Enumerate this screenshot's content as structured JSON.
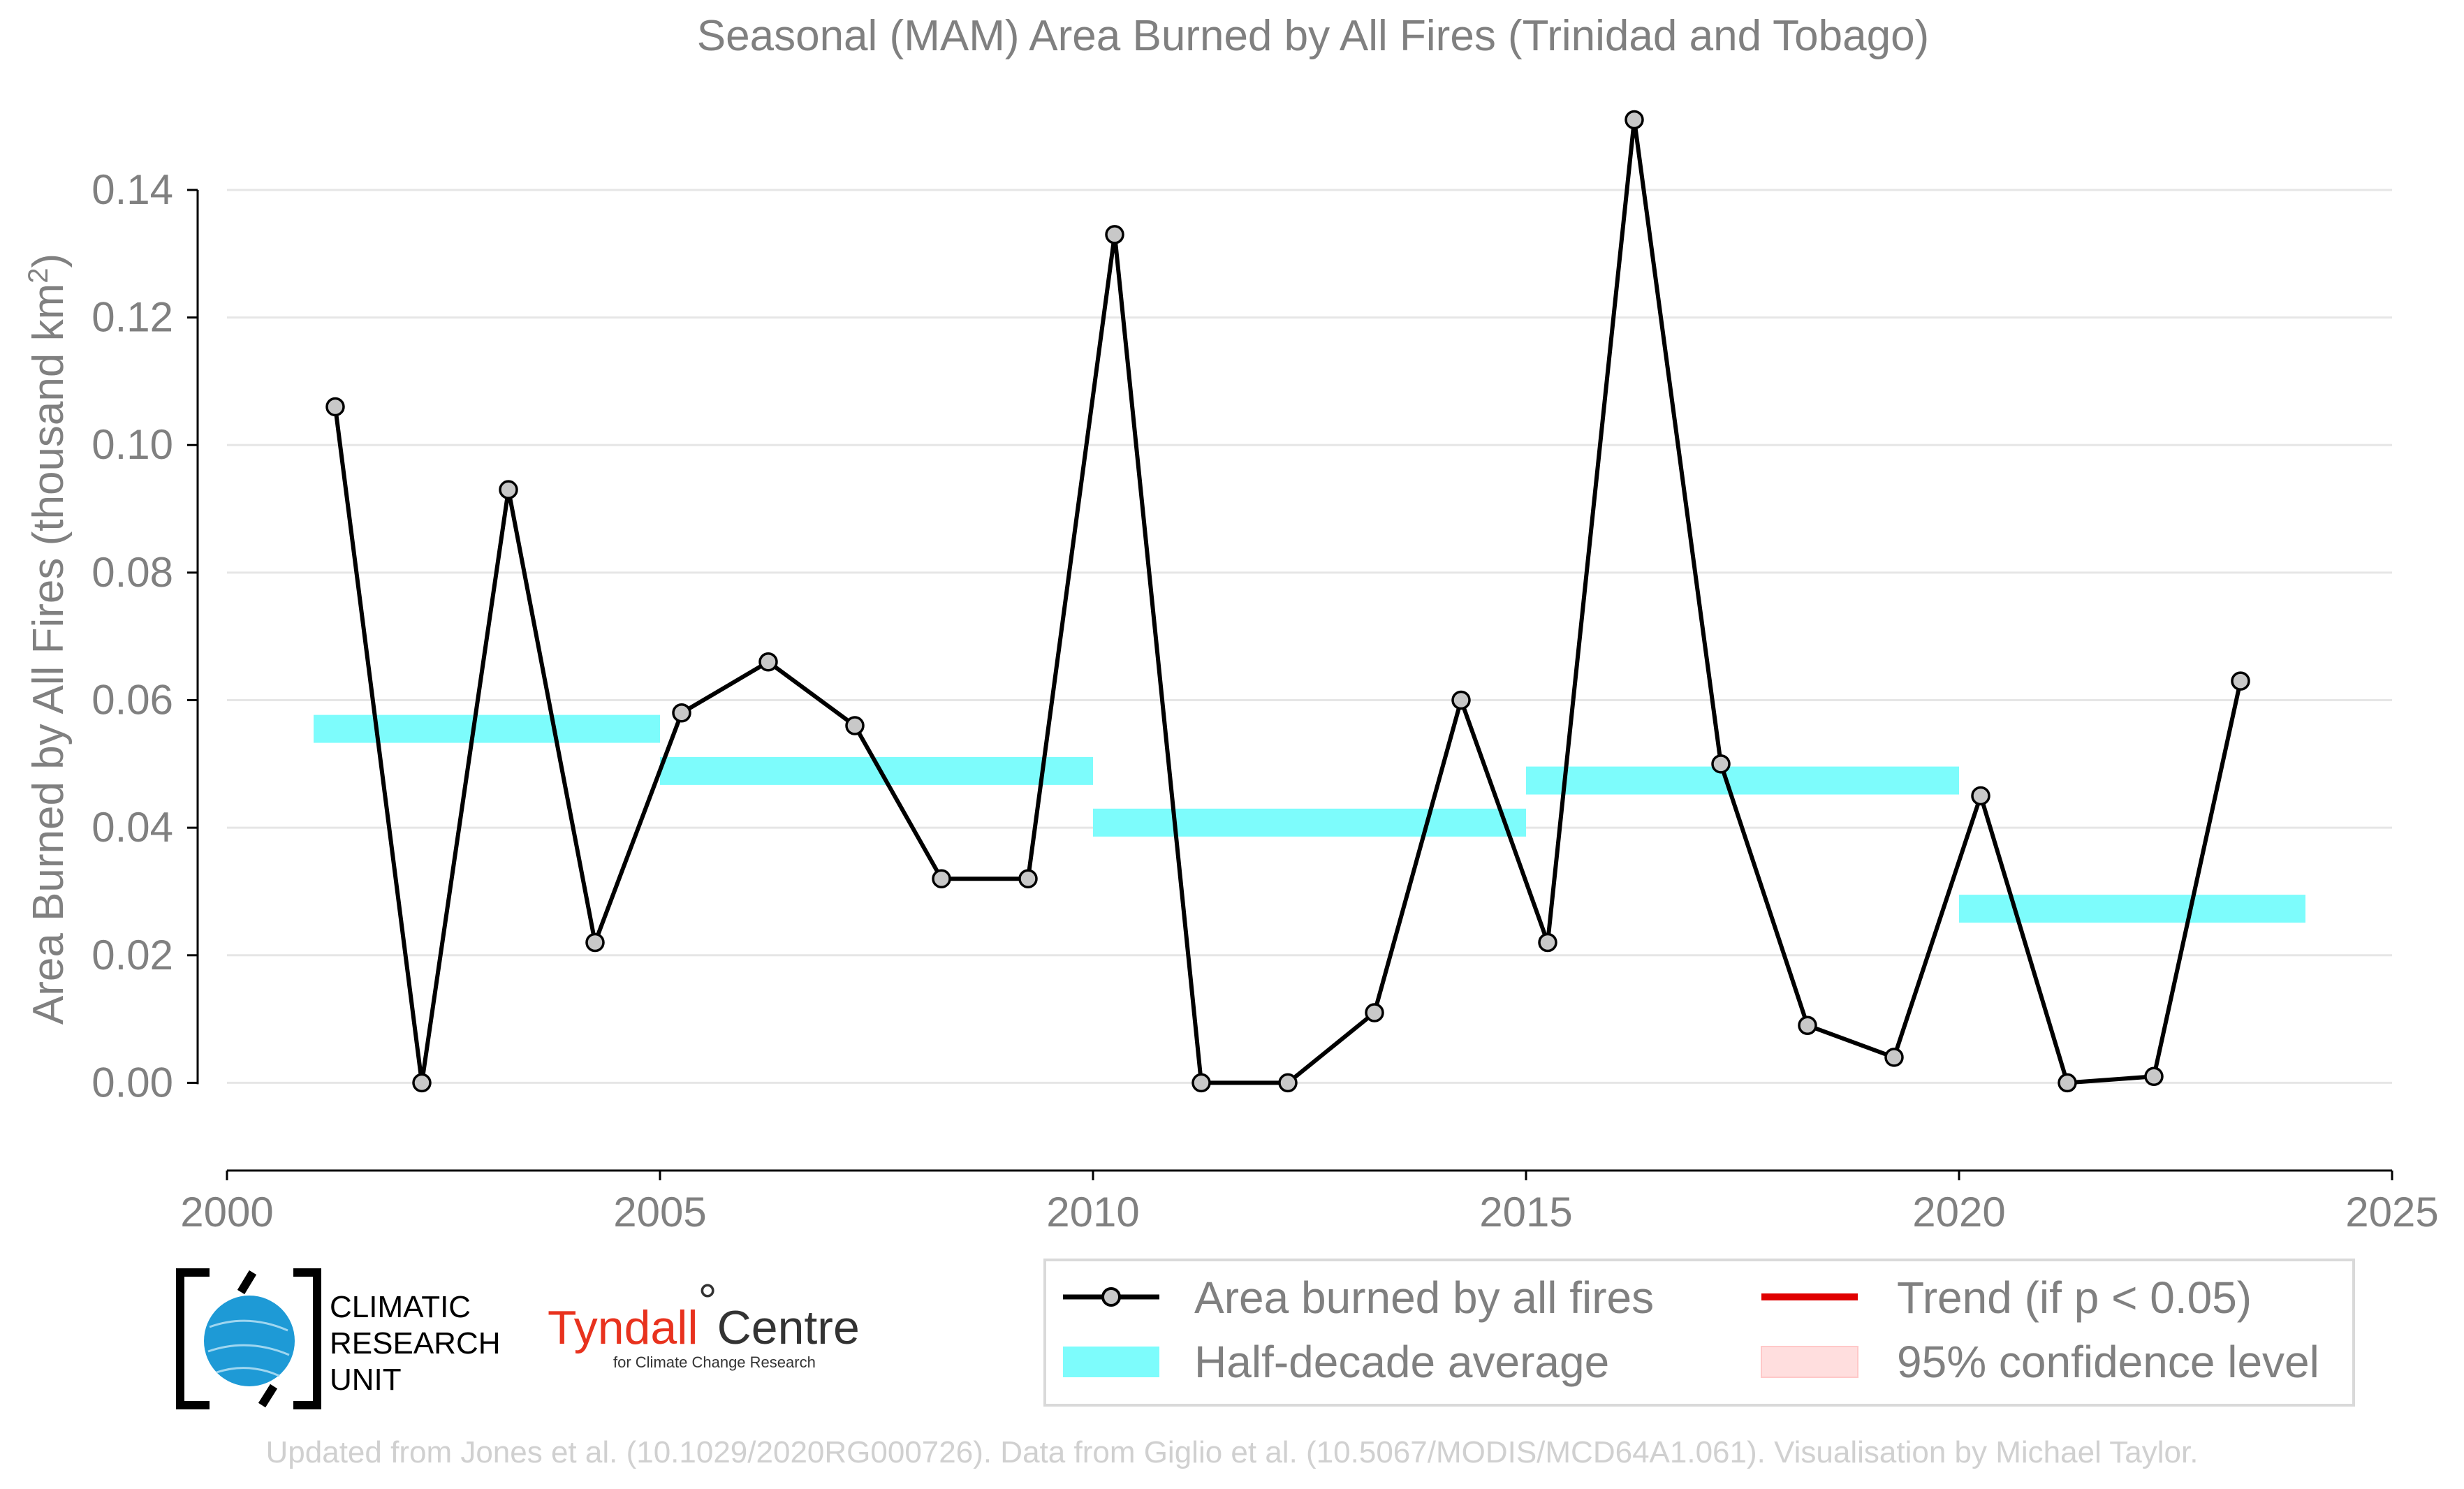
{
  "chart_data": {
    "type": "line",
    "title": "Seasonal (MAM) Area Burned by All Fires (Trinidad and Tobago)",
    "ylabel": "Area Burned by All Fires (thousand km",
    "ylabel_sup": "2",
    "ylabel_close": ")",
    "xlim": [
      2000,
      2025
    ],
    "ylim": [
      -0.012,
      0.155
    ],
    "xticks": [
      2000,
      2005,
      2010,
      2015,
      2020,
      2025
    ],
    "xtick_labels": [
      "2000",
      "2005",
      "2010",
      "2015",
      "2020",
      "2025"
    ],
    "yticks": [
      0.0,
      0.02,
      0.04,
      0.06,
      0.08,
      0.1,
      0.12,
      0.14
    ],
    "ytick_labels": [
      "0.00",
      "0.02",
      "0.04",
      "0.06",
      "0.08",
      "0.10",
      "0.12",
      "0.14"
    ],
    "grid": true,
    "series": [
      {
        "name": "Area burned by all fires",
        "color": "#000000",
        "marker_fill": "#c8c8c8",
        "x": [
          2001.25,
          2002.25,
          2003.25,
          2004.25,
          2005.25,
          2006.25,
          2007.25,
          2008.25,
          2009.25,
          2010.25,
          2011.25,
          2012.25,
          2013.25,
          2014.25,
          2015.25,
          2016.25,
          2017.25,
          2018.25,
          2019.25,
          2020.25,
          2021.25,
          2022.25,
          2023.25
        ],
        "y": [
          0.106,
          0.0,
          0.093,
          0.022,
          0.058,
          0.066,
          0.056,
          0.032,
          0.032,
          0.133,
          0.0,
          0.0,
          0.011,
          0.06,
          0.022,
          0.151,
          0.05,
          0.009,
          0.004,
          0.045,
          0.0,
          0.001,
          0.063
        ]
      }
    ],
    "half_decade_average": {
      "name": "Half-decade average",
      "color": "#7dfcfc",
      "segments": [
        {
          "x0": 2001,
          "x1": 2005,
          "y": 0.0555
        },
        {
          "x0": 2005,
          "x1": 2010,
          "y": 0.0489
        },
        {
          "x0": 2010,
          "x1": 2015,
          "y": 0.0408
        },
        {
          "x0": 2015,
          "x1": 2020,
          "y": 0.0474
        },
        {
          "x0": 2020,
          "x1": 2024,
          "y": 0.0273
        }
      ]
    },
    "legend": {
      "placement": "bottom-right",
      "entries": [
        {
          "label": "Area burned by all fires",
          "color": "#000000"
        },
        {
          "label": "Trend (if p < 0.05)",
          "color": "#e00000"
        },
        {
          "label": "Half-decade average",
          "color": "#7dfcfc"
        },
        {
          "label": "95% confidence level",
          "color": "#ffdede"
        }
      ]
    }
  },
  "logos": {
    "cru_line1": "CLIMATIC",
    "cru_line2": "RESEARCH",
    "cru_line3": "UNIT",
    "tyndall_main": "Tyndall",
    "tyndall_degree": "°",
    "tyndall_centre": "Centre",
    "tyndall_sub": "for Climate Change Research"
  },
  "footer": "Updated from Jones et al. (10.1029/2020RG000726). Data from Giglio et al. (10.5067/MODIS/MCD64A1.061). Visualisation by Michael Taylor."
}
